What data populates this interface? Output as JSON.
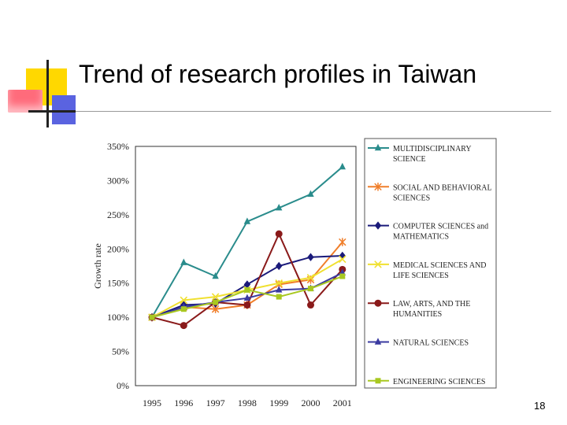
{
  "slide": {
    "title": "Trend of research profiles in Taiwan",
    "page_number": "18"
  },
  "colors": {
    "accent_yellow": "#ffd800",
    "accent_pink": "#ff6b7b",
    "accent_blue": "#5a63e0"
  },
  "chart_data": {
    "type": "line",
    "ylabel": "Growth rate",
    "x": [
      "1995",
      "1996",
      "1997",
      "1998",
      "1999",
      "2000",
      "2001"
    ],
    "y_ticks": [
      "0%",
      "50%",
      "100%",
      "150%",
      "200%",
      "250%",
      "300%",
      "350%"
    ],
    "ylim": [
      0,
      350
    ],
    "y_unit": "%",
    "grid": false,
    "legend_position": "right",
    "series": [
      {
        "name": "MULTIDISCIPLINARY SCIENCE",
        "color": "#2a8c8c",
        "marker": "triangle",
        "values": [
          100,
          180,
          160,
          240,
          260,
          280,
          320
        ]
      },
      {
        "name": "SOCIAL AND BEHAVIORAL SCIENCES",
        "color": "#f07e2a",
        "marker": "star",
        "values": [
          100,
          115,
          112,
          118,
          148,
          155,
          210
        ]
      },
      {
        "name": "COMPUTER SCIENCES and MATHEMATICS",
        "color": "#1a1a7a",
        "marker": "diamond",
        "values": [
          100,
          118,
          120,
          148,
          175,
          188,
          190
        ]
      },
      {
        "name": "MEDICAL SCIENCES AND LIFE SCIENCES",
        "color": "#f0e030",
        "marker": "x",
        "values": [
          100,
          125,
          130,
          140,
          150,
          158,
          185
        ]
      },
      {
        "name": "LAW, ARTS, AND THE HUMANITIES",
        "color": "#8a1a1a",
        "marker": "circle",
        "values": [
          100,
          88,
          122,
          118,
          222,
          118,
          170
        ]
      },
      {
        "name": "NATURAL SCIENCES",
        "color": "#3a3aa0",
        "marker": "triangle",
        "values": [
          100,
          115,
          122,
          128,
          140,
          142,
          165
        ]
      },
      {
        "name": "ENGINEERING SCIENCES",
        "color": "#a8c820",
        "marker": "square",
        "values": [
          100,
          112,
          122,
          140,
          130,
          142,
          160
        ]
      }
    ]
  }
}
